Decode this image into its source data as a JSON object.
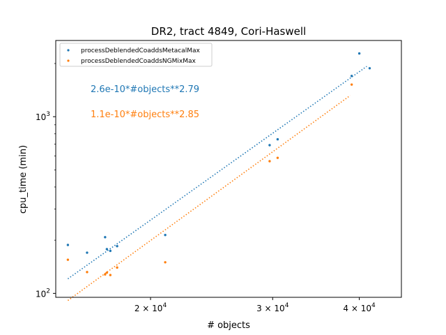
{
  "chart_data": {
    "type": "scatter",
    "title": "DR2, tract 4849, Cori-Haswell",
    "xlabel": "# objects",
    "ylabel": "cpu_time (min)",
    "xscale": "log",
    "yscale": "log",
    "xlim": [
      14600,
      46000
    ],
    "ylim": [
      95,
      2700
    ],
    "x_ticks": [
      {
        "value": 20000,
        "mantissa": "2 × 10",
        "exp": "4"
      },
      {
        "value": 30000,
        "mantissa": "3 × 10",
        "exp": "4"
      },
      {
        "value": 40000,
        "mantissa": "4 × 10",
        "exp": "4"
      }
    ],
    "y_ticks": [
      {
        "value": 100,
        "mantissa": "10",
        "exp": "2"
      },
      {
        "value": 1000,
        "mantissa": "10",
        "exp": "3"
      }
    ],
    "legend": {
      "position": "top-left"
    },
    "fit_annotations": [
      {
        "text": "2.6e-10*#objects**2.79",
        "color": "#1f77b4"
      },
      {
        "text": "1.1e-10*#objects**2.85",
        "color": "#ff7f0e"
      }
    ],
    "series": [
      {
        "name": "processDeblendedCoaddsMetacalMax",
        "color": "#1f77b4",
        "points": [
          [
            15200,
            188
          ],
          [
            16200,
            170
          ],
          [
            17200,
            208
          ],
          [
            17300,
            178
          ],
          [
            17500,
            174
          ],
          [
            17900,
            185
          ],
          [
            21000,
            214
          ],
          [
            29700,
            690
          ],
          [
            30500,
            745
          ],
          [
            39000,
            1700
          ],
          [
            40000,
            2280
          ],
          [
            41400,
            1880
          ]
        ],
        "fit": {
          "coef": 2.6e-10,
          "exp": 2.79,
          "x_range": [
            15200,
            41000
          ]
        }
      },
      {
        "name": "processDeblendedCoaddsNGMixMax",
        "color": "#ff7f0e",
        "points": [
          [
            15200,
            155
          ],
          [
            16200,
            132
          ],
          [
            17200,
            128
          ],
          [
            17300,
            131
          ],
          [
            17500,
            127
          ],
          [
            17900,
            140
          ],
          [
            21000,
            150
          ],
          [
            29700,
            560
          ],
          [
            30500,
            585
          ],
          [
            39000,
            1520
          ]
        ],
        "fit": {
          "coef": 1.1e-10,
          "exp": 2.85,
          "x_range": [
            15200,
            38800
          ]
        }
      }
    ]
  }
}
